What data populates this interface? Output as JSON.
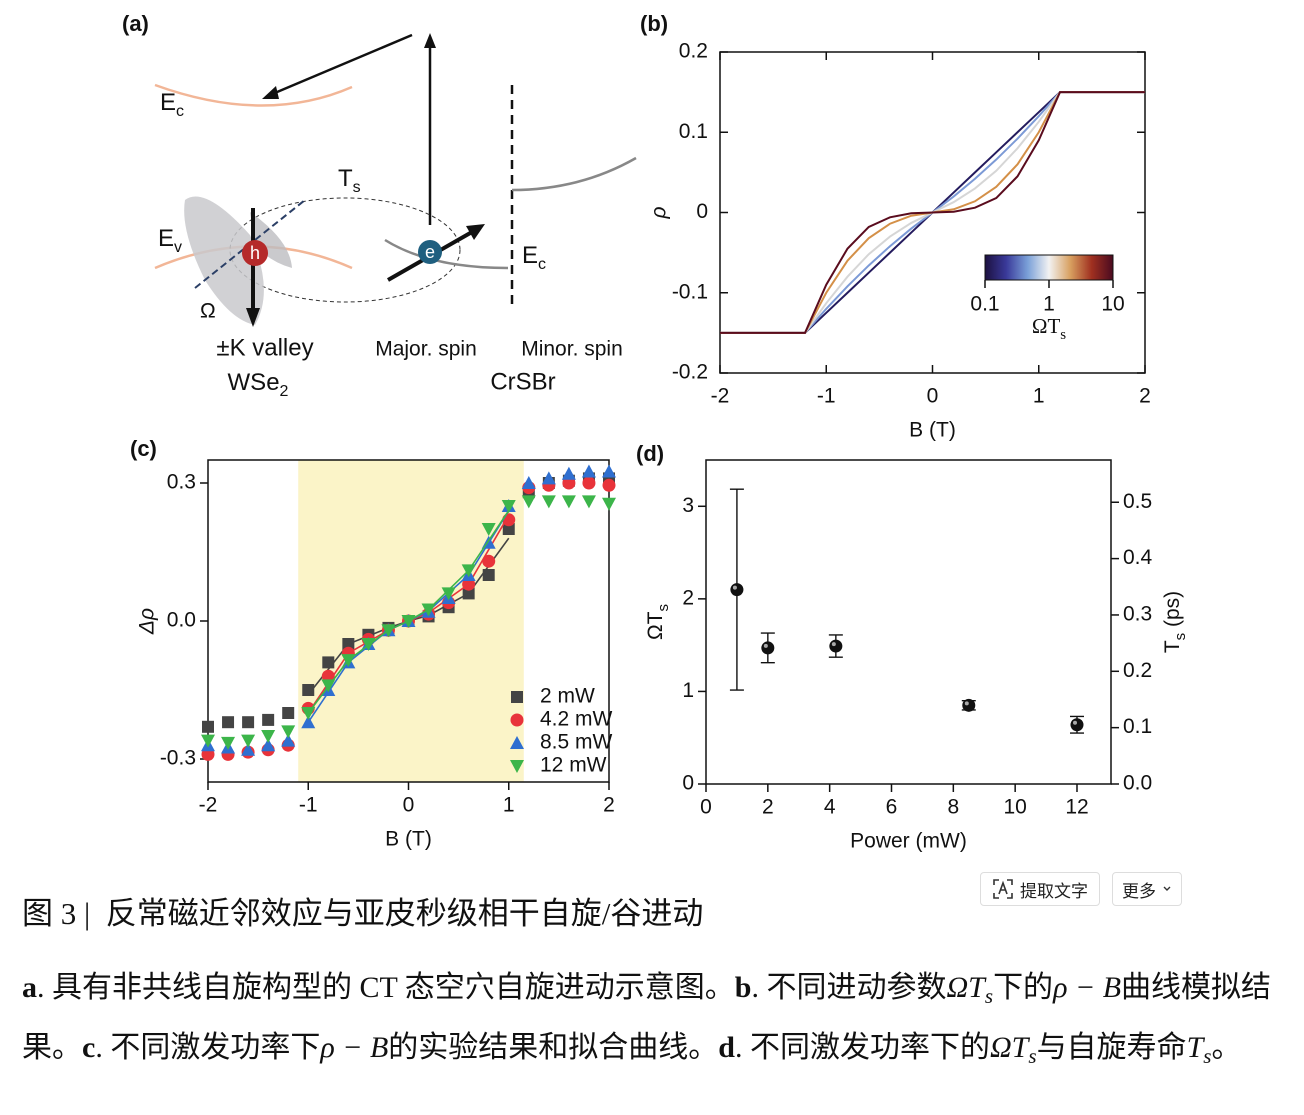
{
  "diagram": {
    "panel_label": "(a)",
    "conduction_band_left": {
      "main": "E",
      "sub": "c"
    },
    "valence_band": {
      "main": "E",
      "sub": "v"
    },
    "lifetime": {
      "main": "T",
      "sub": "s"
    },
    "hole": "h",
    "electron": "e",
    "precession": "Ω",
    "conduction_band_right": {
      "main": "E",
      "sub": "c"
    },
    "valley": "±K valley",
    "material_left": {
      "main": "WSe",
      "sub": "2"
    },
    "major_spin": "Major. spin",
    "minor_spin": "Minor. spin",
    "material_right": "CrSBr"
  },
  "chart_data": [
    {
      "type": "line",
      "panel_label": "(b)",
      "xlabel": "B (T)",
      "ylabel": "ρ",
      "x": [
        -2,
        -1.2,
        -1,
        -0.8,
        -0.6,
        -0.4,
        -0.2,
        0,
        0.2,
        0.4,
        0.6,
        0.8,
        1,
        1.2,
        2
      ],
      "series": [
        {
          "color": "#241b5e",
          "values": [
            -0.15,
            -0.15,
            -0.125,
            -0.1,
            -0.075,
            -0.05,
            -0.025,
            0,
            0.025,
            0.05,
            0.075,
            0.1,
            0.125,
            0.15,
            0.15
          ]
        },
        {
          "color": "#7c9ad6",
          "values": [
            -0.15,
            -0.15,
            -0.12,
            -0.092,
            -0.066,
            -0.042,
            -0.02,
            0,
            0.02,
            0.042,
            0.066,
            0.092,
            0.12,
            0.15,
            0.15
          ]
        },
        {
          "color": "#d6d6d6",
          "values": [
            -0.15,
            -0.15,
            -0.113,
            -0.08,
            -0.052,
            -0.03,
            -0.013,
            0,
            0.013,
            0.03,
            0.052,
            0.08,
            0.113,
            0.15,
            0.15
          ]
        },
        {
          "color": "#d49048",
          "values": [
            -0.15,
            -0.15,
            -0.1,
            -0.06,
            -0.032,
            -0.014,
            -0.004,
            0,
            0.004,
            0.014,
            0.032,
            0.06,
            0.1,
            0.15,
            0.15
          ]
        },
        {
          "color": "#5a0c1e",
          "values": [
            -0.15,
            -0.15,
            -0.09,
            -0.045,
            -0.018,
            -0.006,
            -0.001,
            0,
            0.001,
            0.006,
            0.018,
            0.045,
            0.09,
            0.15,
            0.15
          ]
        }
      ],
      "xlim": [
        -2,
        2
      ],
      "xticks": [
        -2,
        -1,
        0,
        1,
        2
      ],
      "ylim": [
        -0.2,
        0.2
      ],
      "yticks": [
        -0.2,
        -0.1,
        0,
        0.1,
        0.2
      ],
      "colorbar": {
        "label": {
          "main": "ΩT",
          "sub": "s"
        },
        "scale": "log",
        "lim": [
          0.1,
          10
        ],
        "ticks": [
          0.1,
          1,
          10
        ],
        "colors": [
          "#1c1040",
          "#3a3a9a",
          "#7aa0d8",
          "#f2f2f2",
          "#d8a060",
          "#a03020",
          "#4a0a20"
        ]
      }
    },
    {
      "type": "scatter",
      "panel_label": "(c)",
      "xlabel": "B (T)",
      "ylabel": "Δρ",
      "highlight_x": [
        -1.1,
        1.15
      ],
      "highlight_color": "#fbf4c8",
      "x": [
        -2,
        -1.8,
        -1.6,
        -1.4,
        -1.2,
        -1,
        -0.8,
        -0.6,
        -0.4,
        -0.2,
        0,
        0.2,
        0.4,
        0.6,
        0.8,
        1,
        1.2,
        1.4,
        1.6,
        1.8,
        2
      ],
      "fit_x": [
        -1,
        -0.6,
        -0.2,
        0,
        0.2,
        0.6,
        1
      ],
      "series": [
        {
          "name": "2 mW",
          "color": "#444444",
          "marker": "square",
          "values": [
            -0.23,
            -0.22,
            -0.22,
            -0.215,
            -0.2,
            -0.15,
            -0.09,
            -0.05,
            -0.03,
            -0.015,
            0,
            0.01,
            0.03,
            0.06,
            0.1,
            0.2,
            0.28,
            0.3,
            0.305,
            0.31,
            0.31
          ],
          "fit": [
            -0.16,
            -0.05,
            -0.015,
            0,
            0.012,
            0.06,
            0.18
          ]
        },
        {
          "name": "4.2 mW",
          "color": "#e8333a",
          "marker": "circle",
          "values": [
            -0.29,
            -0.29,
            -0.285,
            -0.28,
            -0.27,
            -0.19,
            -0.12,
            -0.07,
            -0.04,
            -0.02,
            0,
            0.015,
            0.04,
            0.08,
            0.13,
            0.22,
            0.29,
            0.295,
            0.3,
            0.3,
            0.295
          ],
          "fit": [
            -0.2,
            -0.07,
            -0.02,
            0,
            0.018,
            0.08,
            0.23
          ]
        },
        {
          "name": "8.5 mW",
          "color": "#2f6fd0",
          "marker": "triangle-up",
          "values": [
            -0.27,
            -0.275,
            -0.28,
            -0.27,
            -0.26,
            -0.22,
            -0.15,
            -0.09,
            -0.05,
            -0.02,
            0,
            0.02,
            0.05,
            0.1,
            0.17,
            0.25,
            0.3,
            0.31,
            0.32,
            0.325,
            0.325
          ],
          "fit": [
            -0.22,
            -0.09,
            -0.02,
            0,
            0.022,
            0.1,
            0.24
          ]
        },
        {
          "name": "12 mW",
          "color": "#3cb54a",
          "marker": "triangle-down",
          "values": [
            -0.26,
            -0.265,
            -0.26,
            -0.25,
            -0.24,
            -0.2,
            -0.14,
            -0.085,
            -0.05,
            -0.02,
            0,
            0.025,
            0.06,
            0.11,
            0.2,
            0.25,
            0.26,
            0.26,
            0.26,
            0.26,
            0.255
          ],
          "fit": [
            -0.2,
            -0.085,
            -0.02,
            0,
            0.025,
            0.11,
            0.24
          ]
        }
      ],
      "xlim": [
        -2,
        2
      ],
      "xticks": [
        -2,
        -1,
        0,
        1,
        2
      ],
      "ylim": [
        -0.35,
        0.35
      ],
      "yticks": [
        -0.3,
        {
          "value": 0,
          "label": "0.0"
        },
        0.3
      ]
    },
    {
      "type": "errorbar",
      "panel_label": "(d)",
      "xlabel": "Power (mW)",
      "ylabel": {
        "main": "ΩT",
        "sub": "s"
      },
      "y2label": {
        "main": "T",
        "sub": "s",
        "after": " (ps)"
      },
      "x": [
        1,
        2,
        4.2,
        8.5,
        12
      ],
      "values": [
        2.1,
        1.47,
        1.49,
        0.85,
        0.64
      ],
      "errors": [
        1.085,
        0.16,
        0.12,
        0.05,
        0.09
      ],
      "color": "#111111",
      "xlim": [
        0,
        13.1
      ],
      "xticks": [
        0,
        2,
        4,
        6,
        8,
        10,
        12
      ],
      "ylim": [
        0,
        3.5
      ],
      "yticks": [
        0,
        1,
        2,
        3
      ],
      "y2lim": [
        0,
        0.575
      ],
      "y2ticks": [
        {
          "value": 0,
          "label": "0.0"
        },
        0.1,
        0.2,
        0.3,
        0.4,
        0.5
      ]
    }
  ],
  "toolbar": {
    "extract_text": "提取文字",
    "more": "更多"
  },
  "caption": {
    "title": "图 3 |  反常磁近邻效应与亚皮秒级相干自旋/谷进动",
    "body": [
      {
        "text": "a",
        "style": "bold"
      },
      {
        "text": ". 具有非共线自旋构型的 CT 态空穴自旋进动示意图。",
        "style": "plain"
      },
      {
        "text": "b",
        "style": "bold"
      },
      {
        "text": ". 不同进动参数",
        "style": "plain"
      },
      {
        "text": "ΩT",
        "style": "math"
      },
      {
        "text": "s",
        "style": "math-sub"
      },
      {
        "text": "下的",
        "style": "plain"
      },
      {
        "text": "ρ − B",
        "style": "math"
      },
      {
        "text": "曲线模拟结果。",
        "style": "plain"
      },
      {
        "text": "c",
        "style": "bold"
      },
      {
        "text": ". 不同激发功率下",
        "style": "plain"
      },
      {
        "text": "ρ − B",
        "style": "math"
      },
      {
        "text": "的实验结果和拟合曲线。",
        "style": "plain"
      },
      {
        "text": "d",
        "style": "bold"
      },
      {
        "text": ". 不同激发功率下的",
        "style": "plain"
      },
      {
        "text": "ΩT",
        "style": "math"
      },
      {
        "text": "s",
        "style": "math-sub"
      },
      {
        "text": "与自旋寿命",
        "style": "plain"
      },
      {
        "text": "T",
        "style": "math"
      },
      {
        "text": "s",
        "style": "math-sub"
      },
      {
        "text": "。",
        "style": "plain"
      }
    ]
  }
}
